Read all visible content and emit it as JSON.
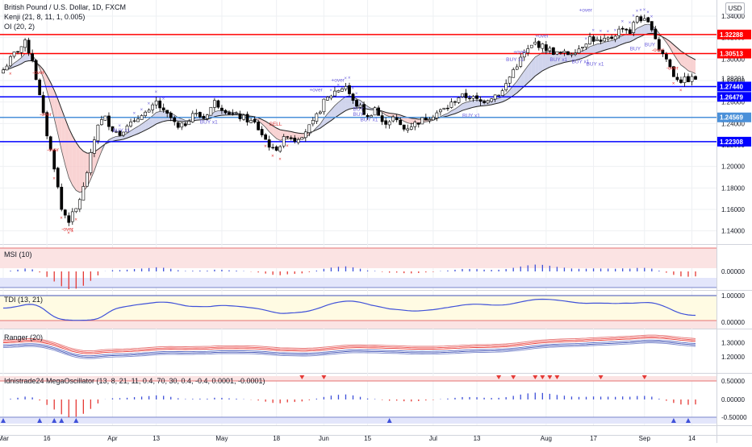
{
  "header": {
    "symbol_line": "British Pound / U.S. Dollar, 1D, FXCM",
    "kenji_label": "Kenji (21, 8, 11, 1, 0.005)",
    "oi_label": "OI (20, 2)",
    "currency_button": "USD"
  },
  "colors": {
    "up": "#26a69a",
    "down": "#000000",
    "candle_body": "#000000",
    "red_level": "#ff0000",
    "blue_level": "#0000ff",
    "light_blue_level": "#4a90d9",
    "band_fill_blue": "#c5cae9",
    "band_fill_red": "#f8c8c8",
    "signal_blue": "#6b5fdc",
    "signal_red": "#e04040",
    "grid": "#eef0f3",
    "axis_text": "#131722"
  },
  "price_axis": {
    "ticks": [
      "1.34000",
      "1.32000",
      "1.30000",
      "1.28000",
      "1.26000",
      "1.24000",
      "1.22000",
      "1.20000",
      "1.18000",
      "1.16000",
      "1.14000"
    ],
    "ylim": [
      1.13,
      1.355
    ],
    "last_price": "1.28201"
  },
  "levels": [
    {
      "value": 1.32288,
      "label": "1.32288",
      "color": "#ff0000",
      "text_color": "#ffffff"
    },
    {
      "value": 1.30513,
      "label": "1.30513",
      "color": "#ff0000",
      "text_color": "#ffffff"
    },
    {
      "value": 1.2744,
      "label": "1.27440",
      "color": "#0000ff",
      "text_color": "#ffffff"
    },
    {
      "value": 1.26479,
      "label": "1.26479",
      "color": "#0000ff",
      "text_color": "#ffffff"
    },
    {
      "value": 1.24569,
      "label": "1.24569",
      "color": "#4a90d9",
      "text_color": "#ffffff"
    },
    {
      "value": 1.22308,
      "label": "1.22308",
      "color": "#0000ff",
      "text_color": "#ffffff"
    }
  ],
  "time_axis": {
    "labels": [
      "Mar",
      "16",
      "Apr",
      "13",
      "May",
      "18",
      "Jun",
      "15",
      "Jul",
      "13",
      "Aug",
      "17",
      "Sep",
      "14"
    ],
    "label_bars": [
      0,
      12,
      30,
      42,
      60,
      75,
      88,
      100,
      118,
      130,
      149,
      162,
      176,
      189
    ]
  },
  "annotations": {
    "over_labels": [
      "-over",
      "-over",
      "-over",
      "-over",
      "-over",
      "+over",
      "+over",
      "+over",
      "+over",
      "+over",
      "-over"
    ],
    "buy_labels": [
      "BUY x1",
      "BUY x1",
      "BUY",
      "BUY",
      "BUY x1",
      "BUY x1",
      "BUY x1",
      "BUY x1",
      "BUY x1",
      "BUY x1",
      "BUY",
      "BUY"
    ],
    "sell_label": "SELL"
  },
  "chart_data": {
    "type": "candlestick",
    "title": "British Pound / U.S. Dollar, 1D, FXCM",
    "bars": 191,
    "close_anchors": [
      [
        0,
        1.29
      ],
      [
        3,
        1.305
      ],
      [
        6,
        1.315
      ],
      [
        8,
        1.3
      ],
      [
        10,
        1.265
      ],
      [
        12,
        1.23
      ],
      [
        14,
        1.2
      ],
      [
        16,
        1.16
      ],
      [
        18,
        1.15
      ],
      [
        20,
        1.16
      ],
      [
        22,
        1.18
      ],
      [
        24,
        1.21
      ],
      [
        26,
        1.24
      ],
      [
        28,
        1.245
      ],
      [
        30,
        1.235
      ],
      [
        32,
        1.23
      ],
      [
        34,
        1.24
      ],
      [
        36,
        1.24
      ],
      [
        38,
        1.25
      ],
      [
        40,
        1.25
      ],
      [
        42,
        1.26
      ],
      [
        44,
        1.25
      ],
      [
        46,
        1.245
      ],
      [
        48,
        1.235
      ],
      [
        50,
        1.24
      ],
      [
        52,
        1.25
      ],
      [
        55,
        1.245
      ],
      [
        58,
        1.26
      ],
      [
        60,
        1.255
      ],
      [
        63,
        1.248
      ],
      [
        66,
        1.245
      ],
      [
        69,
        1.24
      ],
      [
        72,
        1.225
      ],
      [
        74,
        1.215
      ],
      [
        76,
        1.22
      ],
      [
        78,
        1.23
      ],
      [
        80,
        1.225
      ],
      [
        82,
        1.23
      ],
      [
        85,
        1.24
      ],
      [
        88,
        1.26
      ],
      [
        91,
        1.27
      ],
      [
        94,
        1.275
      ],
      [
        96,
        1.26
      ],
      [
        98,
        1.255
      ],
      [
        100,
        1.245
      ],
      [
        102,
        1.255
      ],
      [
        104,
        1.24
      ],
      [
        107,
        1.245
      ],
      [
        110,
        1.235
      ],
      [
        113,
        1.24
      ],
      [
        116,
        1.245
      ],
      [
        119,
        1.25
      ],
      [
        122,
        1.255
      ],
      [
        125,
        1.265
      ],
      [
        128,
        1.265
      ],
      [
        131,
        1.26
      ],
      [
        134,
        1.265
      ],
      [
        137,
        1.27
      ],
      [
        140,
        1.29
      ],
      [
        143,
        1.305
      ],
      [
        146,
        1.315
      ],
      [
        149,
        1.31
      ],
      [
        152,
        1.305
      ],
      [
        155,
        1.305
      ],
      [
        158,
        1.31
      ],
      [
        161,
        1.32
      ],
      [
        164,
        1.315
      ],
      [
        167,
        1.32
      ],
      [
        170,
        1.33
      ],
      [
        172,
        1.325
      ],
      [
        174,
        1.34
      ],
      [
        176,
        1.335
      ],
      [
        178,
        1.33
      ],
      [
        180,
        1.31
      ],
      [
        182,
        1.3
      ],
      [
        184,
        1.285
      ],
      [
        186,
        1.28
      ],
      [
        190,
        1.282
      ]
    ],
    "indicators": {
      "msi": {
        "name": "MSI (10)",
        "ticks": [
          "0.00000"
        ]
      },
      "tdi": {
        "name": "TDI (13, 21)",
        "ticks": [
          "1.00000",
          "0.00000"
        ]
      },
      "ranger": {
        "name": "Ranger (20)",
        "ticks": [
          "1.30000",
          "1.20000"
        ]
      },
      "megaosc": {
        "name": "Idnistrade24 MegaOscillator (13, 8, 21, 11, 0.4, 70, 30, 0.4, -0.4, 0.0001, -0.0001)",
        "ticks": [
          "0.50000",
          "0.00000",
          "-0.50000"
        ]
      }
    }
  }
}
